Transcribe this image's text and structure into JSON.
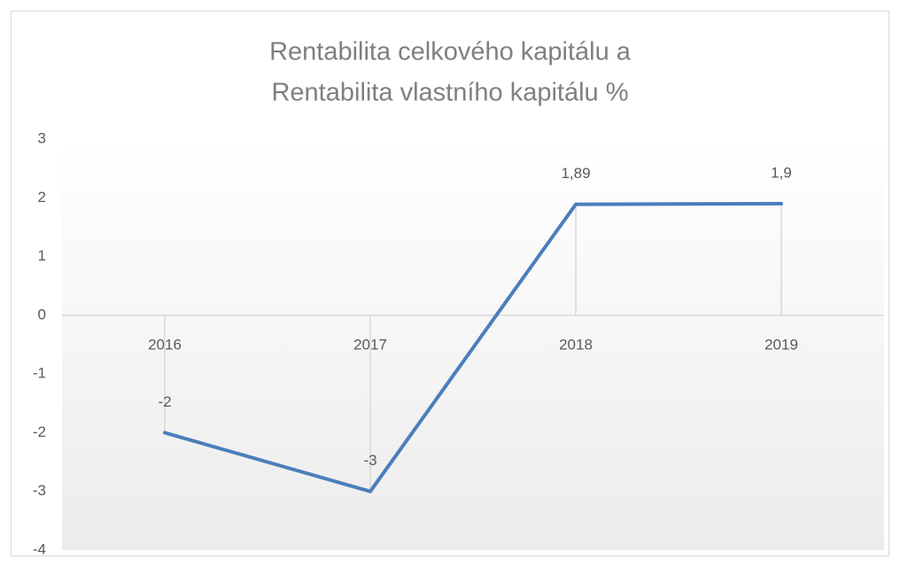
{
  "chart_data": {
    "type": "line",
    "title": [
      "Rentabilita celkového kapitálu a",
      "Rentabilita  vlastního kapitálu  %"
    ],
    "categories": [
      "2016",
      "2017",
      "2018",
      "2019"
    ],
    "series": [
      {
        "color": "#4a7ebb",
        "values": [
          -2,
          -3,
          1.89,
          1.9
        ],
        "value_labels": [
          "-2",
          "-3",
          "1,89",
          "1,9"
        ]
      }
    ],
    "ylim": [
      -4,
      3
    ],
    "yticks": [
      -4,
      -3,
      -2,
      -1,
      0,
      1,
      2,
      3
    ],
    "grid": false,
    "drop_lines": true
  }
}
